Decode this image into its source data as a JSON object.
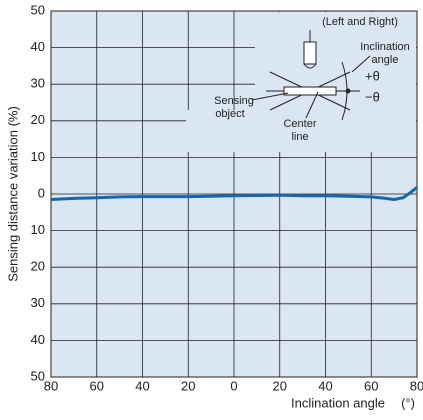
{
  "chart_data": {
    "type": "line",
    "x_label": "Inclination angle",
    "x_unit": "(°)",
    "y_label": "Sensing distance variation (%)",
    "xlim": [
      -80,
      80
    ],
    "ylim": [
      -50,
      50
    ],
    "xticks": [
      {
        "value": -80,
        "label": "80"
      },
      {
        "value": -60,
        "label": "60"
      },
      {
        "value": -40,
        "label": "40"
      },
      {
        "value": -20,
        "label": "20"
      },
      0,
      20,
      40,
      60,
      80
    ],
    "yticks": [
      {
        "value": -50,
        "label": "50"
      },
      {
        "value": -40,
        "label": "40"
      },
      {
        "value": -30,
        "label": "30"
      },
      {
        "value": -20,
        "label": "20"
      },
      {
        "value": -10,
        "label": "10"
      },
      0,
      10,
      20,
      30,
      40,
      50
    ],
    "grid": true,
    "series": [
      {
        "color": "#1366b0",
        "x": [
          -80,
          -70,
          -60,
          -50,
          -40,
          -30,
          -20,
          -10,
          0,
          10,
          20,
          30,
          40,
          50,
          60,
          65,
          70,
          74,
          78,
          80
        ],
        "values": [
          -1.5,
          -1.2,
          -1,
          -0.8,
          -0.7,
          -0.7,
          -0.7,
          -0.6,
          -0.5,
          -0.4,
          -0.3,
          -0.5,
          -0.5,
          -0.6,
          -0.8,
          -1.1,
          -1.5,
          -1,
          0.8,
          1.8
        ]
      }
    ],
    "inset": {
      "scope": "(Left and Right)",
      "angle_label": [
        "Inclination",
        "angle"
      ],
      "plus": "+θ",
      "minus": "−θ",
      "object_label": [
        "Sensing",
        "object"
      ],
      "center_label": [
        "Center",
        "line"
      ]
    }
  }
}
